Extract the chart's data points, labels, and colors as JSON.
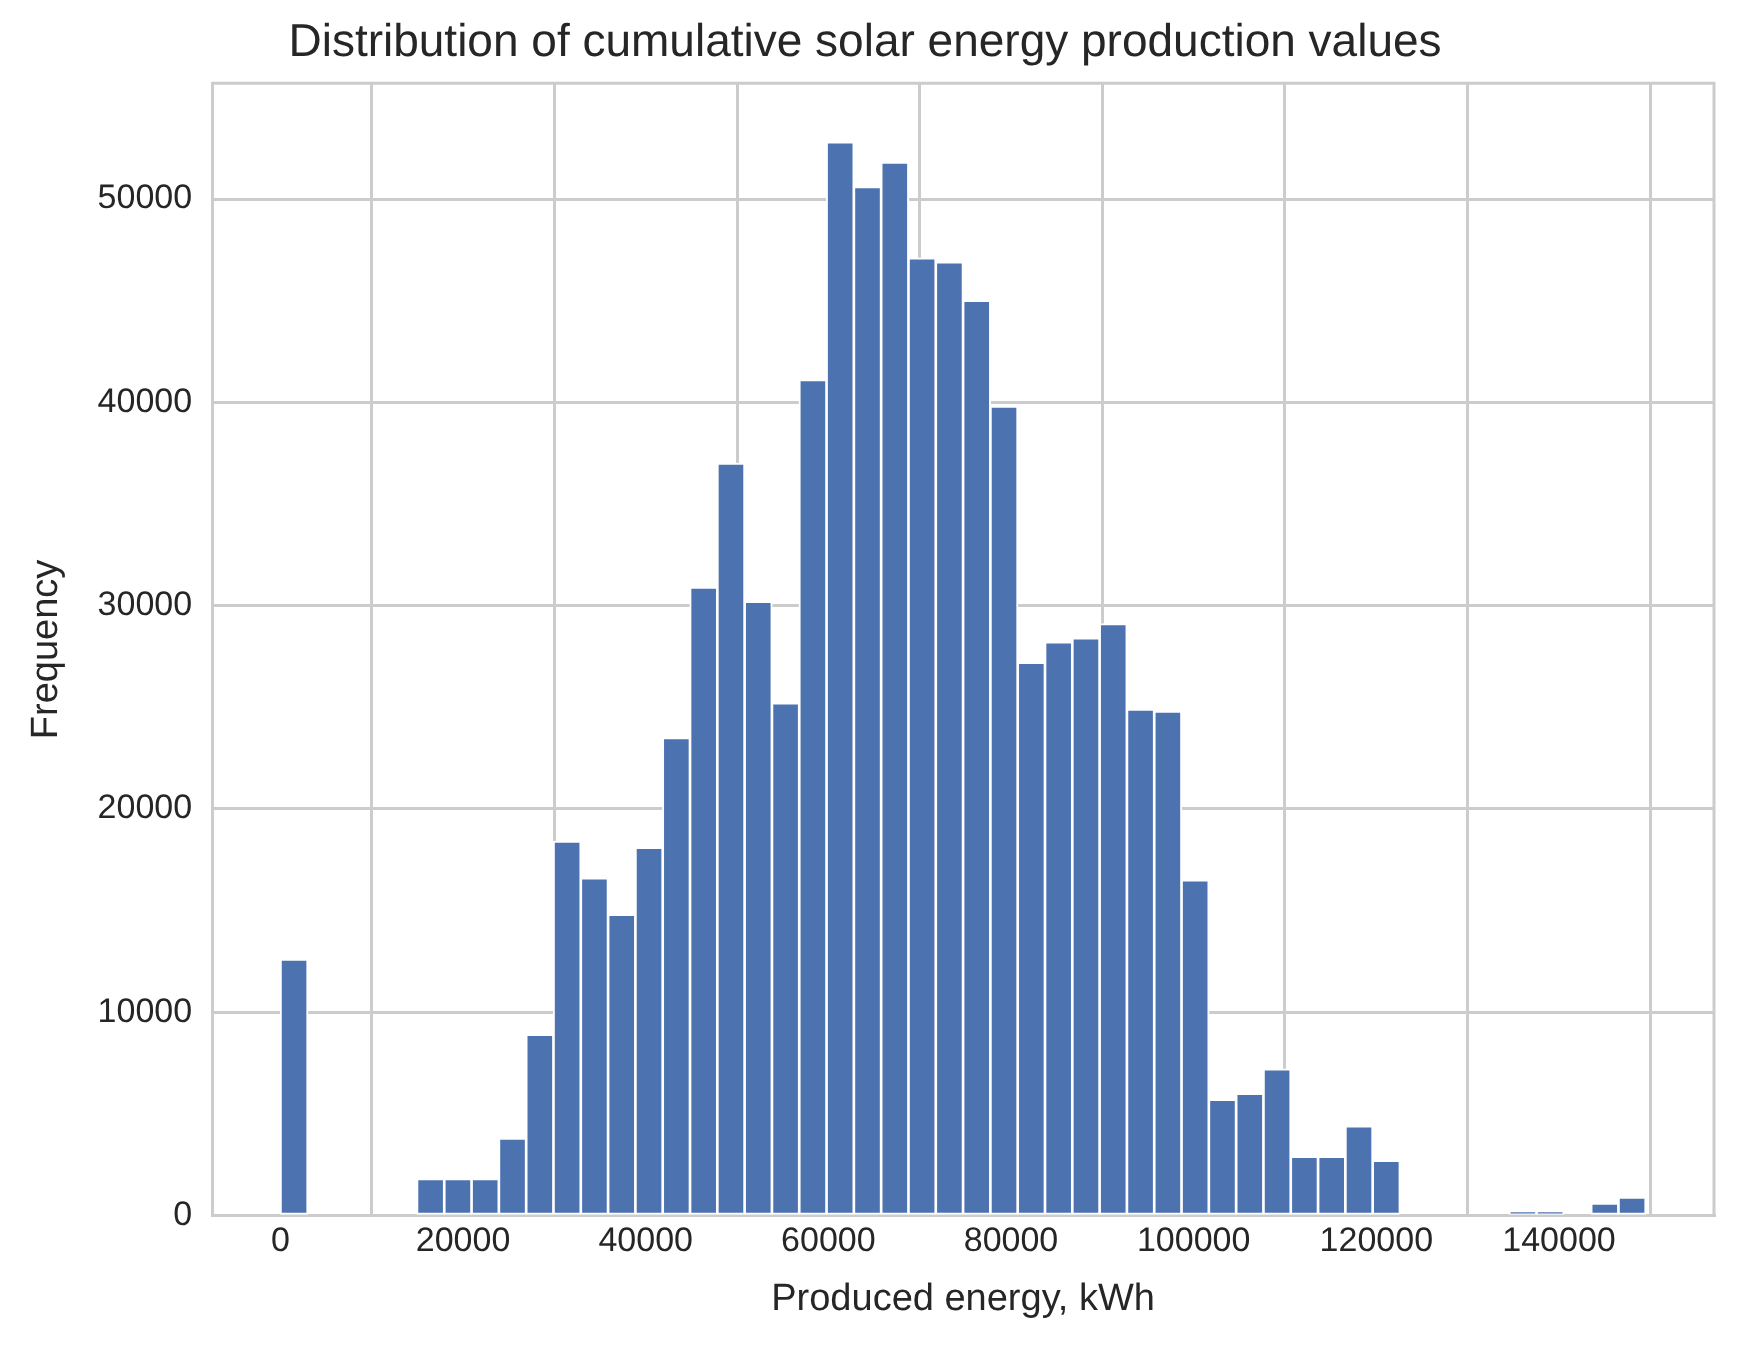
{
  "chart_data": {
    "type": "histogram",
    "title": "Distribution of cumulative solar energy production values",
    "xlabel": "Produced energy, kWh",
    "ylabel": "Frequency",
    "bins": [
      0,
      2990,
      5980,
      8970,
      11960,
      14950,
      17940,
      20930,
      23920,
      26910,
      29900,
      32890,
      35880,
      38870,
      41860,
      44850,
      47840,
      50830,
      53820,
      56810,
      59800,
      62790,
      65780,
      68770,
      71760,
      74750,
      77740,
      80730,
      83720,
      86710,
      89700,
      92690,
      95680,
      98670,
      101660,
      104650,
      107640,
      110630,
      113620,
      116610,
      119600,
      122590,
      125580,
      128570,
      131560,
      134550,
      137540,
      140530,
      143520,
      146510,
      149500
    ],
    "values": [
      12600,
      0,
      0,
      0,
      0,
      1800,
      1800,
      1800,
      3800,
      8900,
      18400,
      16600,
      14800,
      18100,
      23500,
      30900,
      37000,
      30200,
      25200,
      41100,
      52800,
      50600,
      51800,
      47100,
      46900,
      45000,
      39800,
      27200,
      28200,
      28400,
      29100,
      24900,
      24800,
      16500,
      5700,
      6000,
      7200,
      2900,
      2900,
      4400,
      2700,
      0,
      0,
      0,
      0,
      200,
      200,
      0,
      600,
      900
    ],
    "color": "#4c72b0",
    "xlim": [
      -7475,
      156975
    ],
    "xticks": [
      0,
      20000,
      40000,
      60000,
      80000,
      100000,
      120000,
      140000
    ],
    "ylim": [
      0,
      55700
    ],
    "yticks": [
      0,
      10000,
      20000,
      30000,
      40000,
      50000
    ],
    "grid": true
  }
}
